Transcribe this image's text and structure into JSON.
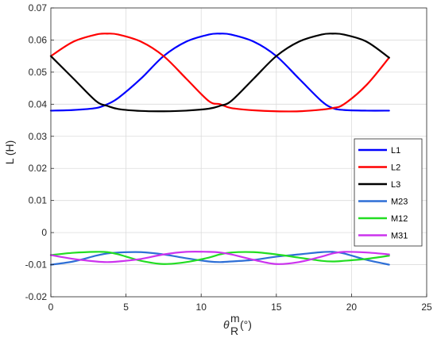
{
  "chart_data": {
    "type": "line",
    "xlabel_main": "θ",
    "xlabel_sup": "m",
    "xlabel_sub": "R",
    "xlabel_unit": " (°)",
    "ylabel": "L (H)",
    "xlim": [
      0,
      25
    ],
    "ylim": [
      -0.02,
      0.07
    ],
    "xticks": [
      "0",
      "5",
      "10",
      "15",
      "20",
      "25"
    ],
    "yticks": [
      "-0.02",
      "-0.01",
      "0",
      "0.01",
      "0.02",
      "0.03",
      "0.04",
      "0.05",
      "0.06",
      "0.07"
    ],
    "grid": true,
    "legend_position": "center-right",
    "x": [
      0,
      1.5,
      3,
      3.75,
      4.5,
      6,
      7.5,
      9,
      10.5,
      11.25,
      12,
      13.5,
      15,
      16.5,
      18,
      18.75,
      19.5,
      21,
      22.5
    ],
    "series": [
      {
        "name": "L1",
        "color": "#0000ff",
        "values": [
          0.038,
          0.0382,
          0.0388,
          0.04,
          0.042,
          0.048,
          0.055,
          0.0595,
          0.0617,
          0.062,
          0.0617,
          0.0595,
          0.055,
          0.048,
          0.041,
          0.0388,
          0.0382,
          0.038,
          0.038
        ]
      },
      {
        "name": "L2",
        "color": "#ff0000",
        "values": [
          0.055,
          0.0595,
          0.0617,
          0.062,
          0.0617,
          0.0595,
          0.055,
          0.048,
          0.041,
          0.04,
          0.0388,
          0.0381,
          0.0378,
          0.0378,
          0.0383,
          0.0388,
          0.04,
          0.046,
          0.0545
        ]
      },
      {
        "name": "L3",
        "color": "#000000",
        "values": [
          0.055,
          0.048,
          0.041,
          0.0395,
          0.0385,
          0.0379,
          0.0378,
          0.038,
          0.0386,
          0.0395,
          0.041,
          0.048,
          0.055,
          0.0595,
          0.0617,
          0.062,
          0.0617,
          0.0595,
          0.0545
        ]
      },
      {
        "name": "M23",
        "color": "#2e6fd6",
        "values": [
          -0.01,
          -0.009,
          -0.0072,
          -0.0065,
          -0.0062,
          -0.0061,
          -0.0068,
          -0.008,
          -0.009,
          -0.0092,
          -0.009,
          -0.0085,
          -0.0075,
          -0.0068,
          -0.0061,
          -0.006,
          -0.0065,
          -0.0085,
          -0.01
        ]
      },
      {
        "name": "M12",
        "color": "#22dd22",
        "values": [
          -0.007,
          -0.0063,
          -0.006,
          -0.0061,
          -0.0068,
          -0.0088,
          -0.0098,
          -0.0092,
          -0.0078,
          -0.0068,
          -0.0062,
          -0.0061,
          -0.0068,
          -0.0078,
          -0.0088,
          -0.009,
          -0.0088,
          -0.0082,
          -0.0072
        ]
      },
      {
        "name": "M31",
        "color": "#cc33ee",
        "values": [
          -0.007,
          -0.0082,
          -0.009,
          -0.0092,
          -0.009,
          -0.0082,
          -0.0068,
          -0.006,
          -0.006,
          -0.0062,
          -0.0068,
          -0.0085,
          -0.0098,
          -0.0092,
          -0.0075,
          -0.0065,
          -0.006,
          -0.0062,
          -0.0068
        ]
      }
    ]
  }
}
